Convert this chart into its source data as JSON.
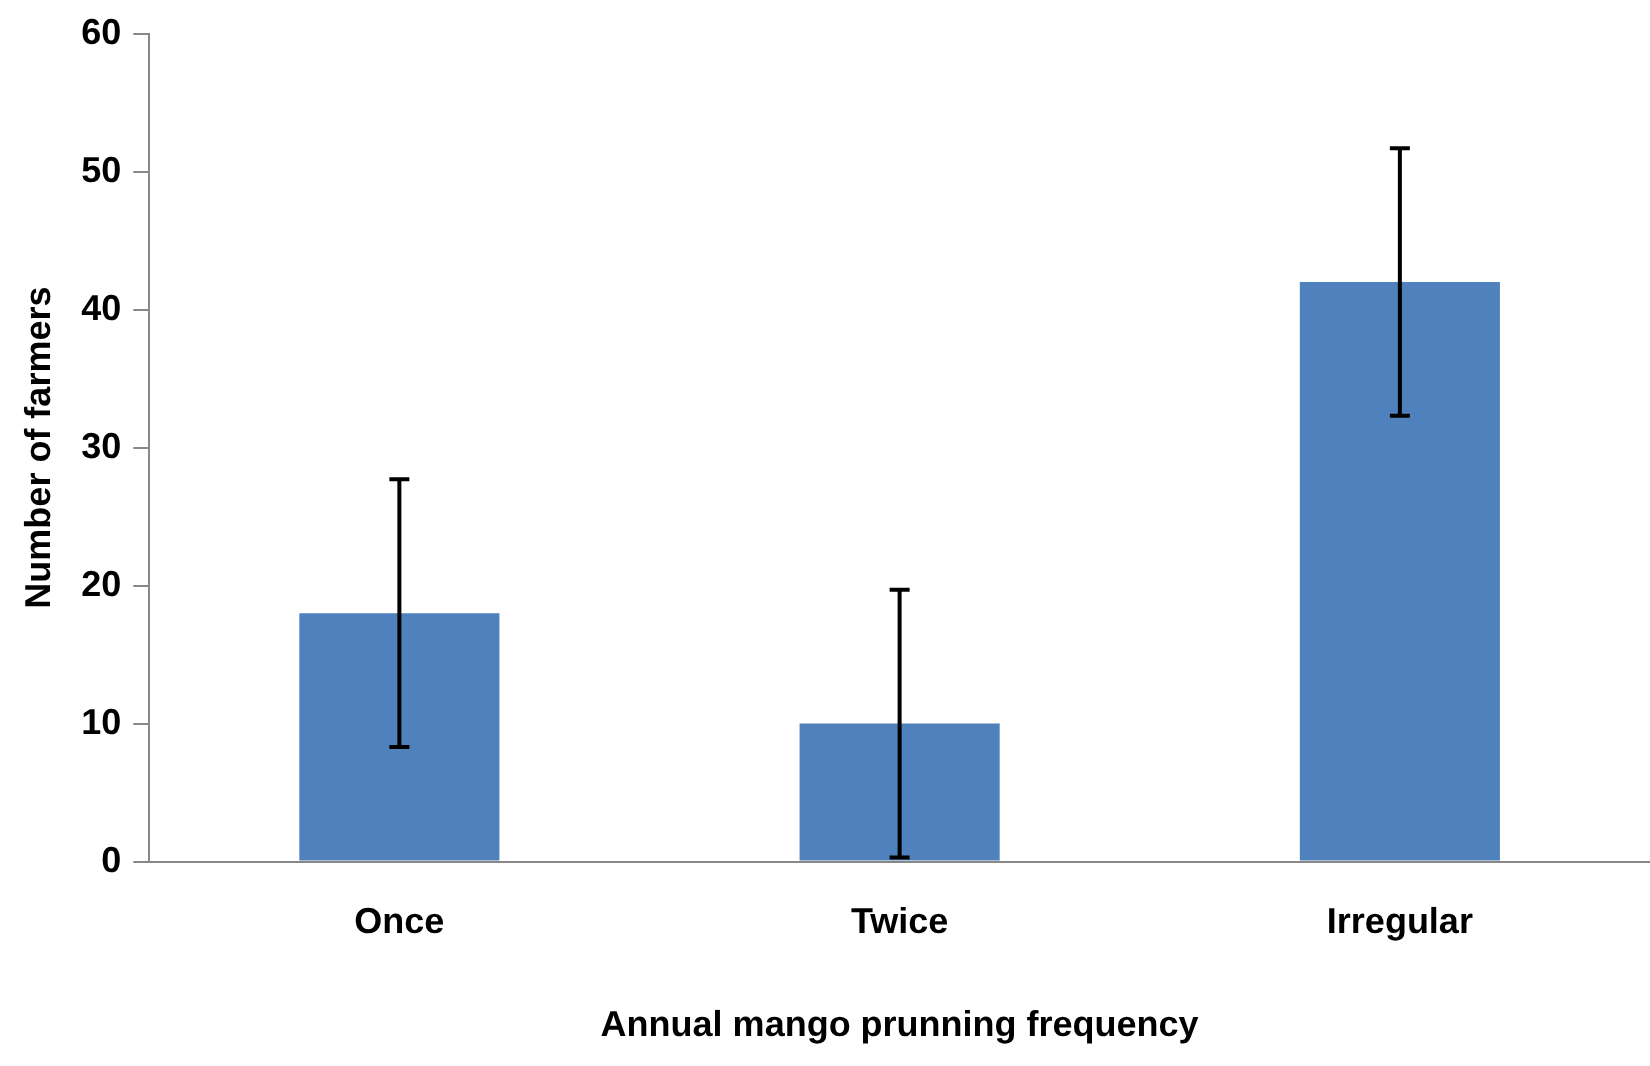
{
  "chart_data": {
    "type": "bar",
    "xlabel": "Annual mango prunning frequency",
    "ylabel": "Number of farmers",
    "categories": [
      "Once",
      "Twice",
      "Irregular"
    ],
    "values": [
      18,
      10,
      42
    ],
    "errors": [
      9.7,
      9.7,
      9.7
    ],
    "color": "#4f81bd",
    "ylim": [
      0,
      60
    ],
    "yticks": [
      0,
      10,
      20,
      30,
      40,
      50,
      60
    ],
    "grid": false,
    "legend": false
  }
}
